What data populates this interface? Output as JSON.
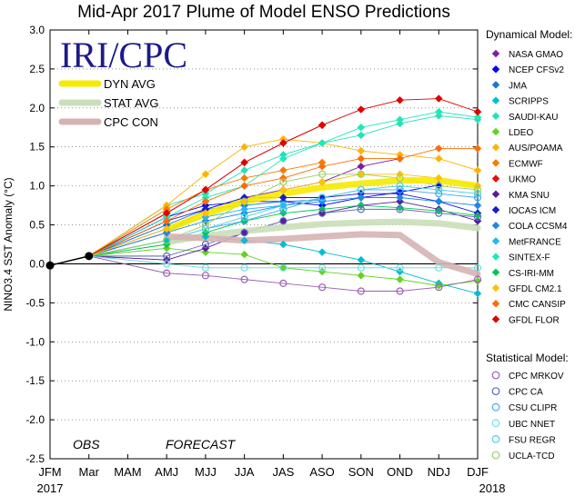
{
  "header": {
    "title": "Mid-Apr 2017 Plume of Model ENSO Predictions",
    "logo_text": "IRI/CPC"
  },
  "chart_data": {
    "type": "line",
    "title": "Mid-Apr 2017 Plume of Model ENSO Predictions",
    "ylabel": "NINO3.4 SST Anomaly (°C)",
    "ylim": [
      -2.5,
      3.0
    ],
    "yticks": [
      "3.0",
      "2.5",
      "2.0",
      "1.5",
      "1.0",
      "0.5",
      "0.0",
      "-0.5",
      "-1.0",
      "-1.5",
      "-2.0",
      "-2.5"
    ],
    "categories": [
      "JFM",
      "Mar",
      "MAM",
      "AMJ",
      "MJJ",
      "JJA",
      "JAS",
      "ASO",
      "SON",
      "OND",
      "NDJ",
      "DJF"
    ],
    "year_labels": {
      "start": "2017",
      "end": "2018"
    },
    "annotations": {
      "obs": "OBS",
      "forecast": "FORECAST"
    },
    "grid": true,
    "zero_line": true,
    "observed": [
      -0.02,
      0.1
    ],
    "avg_lines": [
      {
        "name": "DYN AVG",
        "color": "#f5ea00",
        "values": [
          0.44,
          0.64,
          0.8,
          0.9,
          0.98,
          1.03,
          1.07,
          1.07,
          1.0
        ]
      },
      {
        "name": "STAT AVG",
        "color": "#c9dfb8",
        "values": [
          0.28,
          0.36,
          0.42,
          0.47,
          0.51,
          0.53,
          0.54,
          0.52,
          0.46
        ]
      },
      {
        "name": "CPC CON",
        "color": "#d6b3b3",
        "values": [
          0.35,
          0.33,
          0.3,
          0.32,
          0.35,
          0.38,
          0.37,
          0.02,
          -0.13
        ]
      }
    ],
    "legend_dynamical_title": "Dynamical Model:",
    "legend_statistical_title": "Statistical Model:",
    "dynamical_series": [
      {
        "name": "NASA GMAO",
        "color": "#7b1fa2",
        "values": [
          0.4,
          0.7,
          0.85,
          0.95,
          1.05,
          1.25,
          1.35
        ]
      },
      {
        "name": "NCEP CFSv2",
        "color": "#0000ff",
        "values": [
          0.6,
          0.75,
          0.8,
          0.8,
          0.75,
          0.85,
          0.92,
          1.01
        ]
      },
      {
        "name": "JMA",
        "color": "#1976d2",
        "values": [
          0.5,
          0.7,
          0.75,
          0.8,
          0.82
        ]
      },
      {
        "name": "SCRIPPS",
        "color": "#00bcd4",
        "values": [
          0.3,
          0.35,
          0.3,
          0.25,
          0.15,
          0.05,
          -0.1,
          -0.25,
          -0.38
        ]
      },
      {
        "name": "SAUDI-KAU",
        "color": "#26e0b8",
        "values": [
          0.75,
          0.9,
          1.2,
          1.4,
          1.55,
          1.65,
          1.8,
          1.9,
          1.85
        ]
      },
      {
        "name": "LDEO",
        "color": "#62d322",
        "values": [
          0.2,
          0.15,
          0.12,
          -0.05,
          -0.1,
          -0.15,
          -0.2,
          -0.28,
          -0.22
        ]
      },
      {
        "name": "AUS/POAMA",
        "color": "#ffb300",
        "values": [
          0.75,
          1.15,
          1.5,
          1.6,
          1.55,
          1.45,
          1.4,
          1.35,
          1.2
        ]
      },
      {
        "name": "ECMWF",
        "color": "#f57c00",
        "values": [
          0.7,
          0.95,
          1.1,
          1.2,
          1.3
        ]
      },
      {
        "name": "UKMO",
        "color": "#e01010",
        "values": [
          0.65,
          0.95,
          1.3,
          1.55,
          1.78
        ]
      },
      {
        "name": "KMA SNU",
        "color": "#5e1a9e",
        "values": [
          0.05,
          0.2,
          0.4,
          0.55,
          0.65,
          0.75,
          0.8,
          0.7,
          0.55
        ]
      },
      {
        "name": "IOCAS ICM",
        "color": "#1a1ad0",
        "values": [
          0.55,
          0.7,
          0.85,
          0.85,
          0.85,
          0.9,
          0.9,
          0.8,
          0.65
        ]
      },
      {
        "name": "COLA CCSM4",
        "color": "#1e88e5",
        "values": [
          0.4,
          0.55,
          0.65,
          0.75,
          0.8,
          0.85,
          0.85,
          0.8,
          0.75
        ]
      },
      {
        "name": "MetFRANCE",
        "color": "#29b6f6",
        "values": [
          0.45,
          0.6,
          0.7,
          0.75
        ]
      },
      {
        "name": "SINTEX-F",
        "color": "#1de9b6",
        "values": [
          0.6,
          0.85,
          1.0,
          1.35,
          1.55,
          1.75,
          1.85,
          1.95,
          1.88
        ]
      },
      {
        "name": "CS-IRI-MM",
        "color": "#00c853",
        "values": [
          0.25,
          0.4,
          0.55,
          0.65,
          0.7,
          0.75,
          0.72,
          0.68,
          0.62
        ]
      },
      {
        "name": "GFDL CM2.1",
        "color": "#ffc107",
        "values": [
          0.45,
          0.65,
          0.8,
          0.95,
          1.05,
          1.15,
          1.15,
          1.1,
          1.0
        ]
      },
      {
        "name": "CMC CANSIP",
        "color": "#ff6d00",
        "values": [
          0.55,
          0.8,
          1.0,
          1.1,
          1.25,
          1.35,
          1.35,
          1.48,
          1.48
        ]
      },
      {
        "name": "GFDL FLOR",
        "color": "#e00000",
        "values": [
          0.65,
          0.95,
          1.3,
          1.55,
          1.78,
          1.98,
          2.1,
          2.12,
          1.95
        ]
      }
    ],
    "statistical_series": [
      {
        "name": "CPC MRKOV",
        "color": "#9c5fb5",
        "values": [
          -0.12,
          -0.15,
          -0.2,
          -0.25,
          -0.3,
          -0.35,
          -0.35,
          -0.3,
          -0.2
        ]
      },
      {
        "name": "CPC CA",
        "color": "#5c6bc0",
        "values": [
          0.1,
          0.25,
          0.4,
          0.55,
          0.65,
          0.7,
          0.7,
          0.65,
          0.6
        ]
      },
      {
        "name": "CSU CLIPR",
        "color": "#42a5f5",
        "values": [
          0.3,
          0.45,
          0.55,
          0.7,
          0.85,
          0.95,
          0.95,
          0.9,
          0.85
        ]
      },
      {
        "name": "UBC NNET",
        "color": "#6ee0e0",
        "values": [
          0.0,
          -0.05,
          -0.05,
          -0.05,
          -0.05,
          -0.05,
          -0.05,
          -0.05,
          -0.05
        ]
      },
      {
        "name": "FSU REGR",
        "color": "#4dd0e1",
        "values": [
          0.3,
          0.45,
          0.6,
          0.75,
          0.85,
          0.95,
          1.0,
          0.95,
          0.9
        ]
      },
      {
        "name": "UCLA-TCD",
        "color": "#9ccc65",
        "values": [
          0.3,
          0.5,
          0.8,
          1.05,
          1.15,
          1.15,
          1.1,
          1.0,
          0.95
        ]
      }
    ]
  }
}
